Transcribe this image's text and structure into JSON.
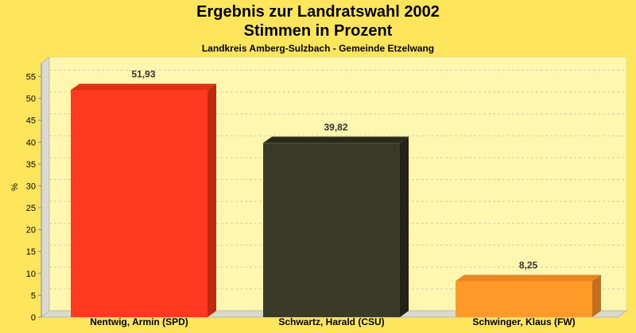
{
  "chart_data": {
    "type": "bar",
    "title": "Ergebnis zur Landratswahl 2002",
    "subtitle": "Stimmen in Prozent",
    "caption": "Landkreis Amberg-Sulzbach - Gemeinde Etzelwang",
    "ylabel": "%",
    "xlabel": "",
    "ylim": [
      0,
      58
    ],
    "yticks": [
      "0",
      "5",
      "10",
      "15",
      "20",
      "25",
      "30",
      "35",
      "40",
      "45",
      "50",
      "55"
    ],
    "grid": true,
    "categories": [
      "Nentwig, Armin (SPD)",
      "Schwartz, Harald (CSU)",
      "Schwinger, Klaus (FW)"
    ],
    "values": [
      51.93,
      39.82,
      8.25
    ],
    "value_labels": [
      "51,93",
      "39,82",
      "8,25"
    ],
    "colors": [
      "#FF3A20",
      "#3A3A28",
      "#FF9A28"
    ],
    "top_colors": [
      "#E03010",
      "#2A2A1A",
      "#E88620"
    ],
    "side_colors": [
      "#C02A10",
      "#22221A",
      "#C07020"
    ]
  },
  "colors": {
    "background": "#FFE55C",
    "plot_background": "#FFF7B0",
    "grid": "#D8D0A0",
    "axis": "#888888"
  }
}
